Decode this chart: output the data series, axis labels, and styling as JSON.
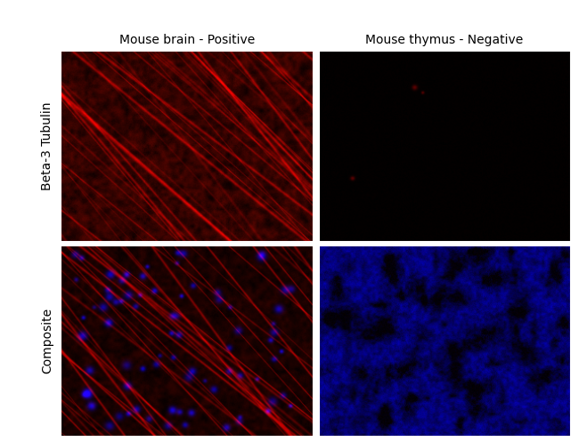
{
  "col_labels": [
    "Mouse brain - Positive",
    "Mouse thymus - Negative"
  ],
  "row_labels": [
    "Beta-3 Tubulin",
    "Composite"
  ],
  "background_color": "white",
  "label_color": "black",
  "figsize": [
    6.5,
    4.97
  ],
  "dpi": 100,
  "label_fontsize": 10,
  "col_label_fontsize": 10,
  "seed": 17
}
